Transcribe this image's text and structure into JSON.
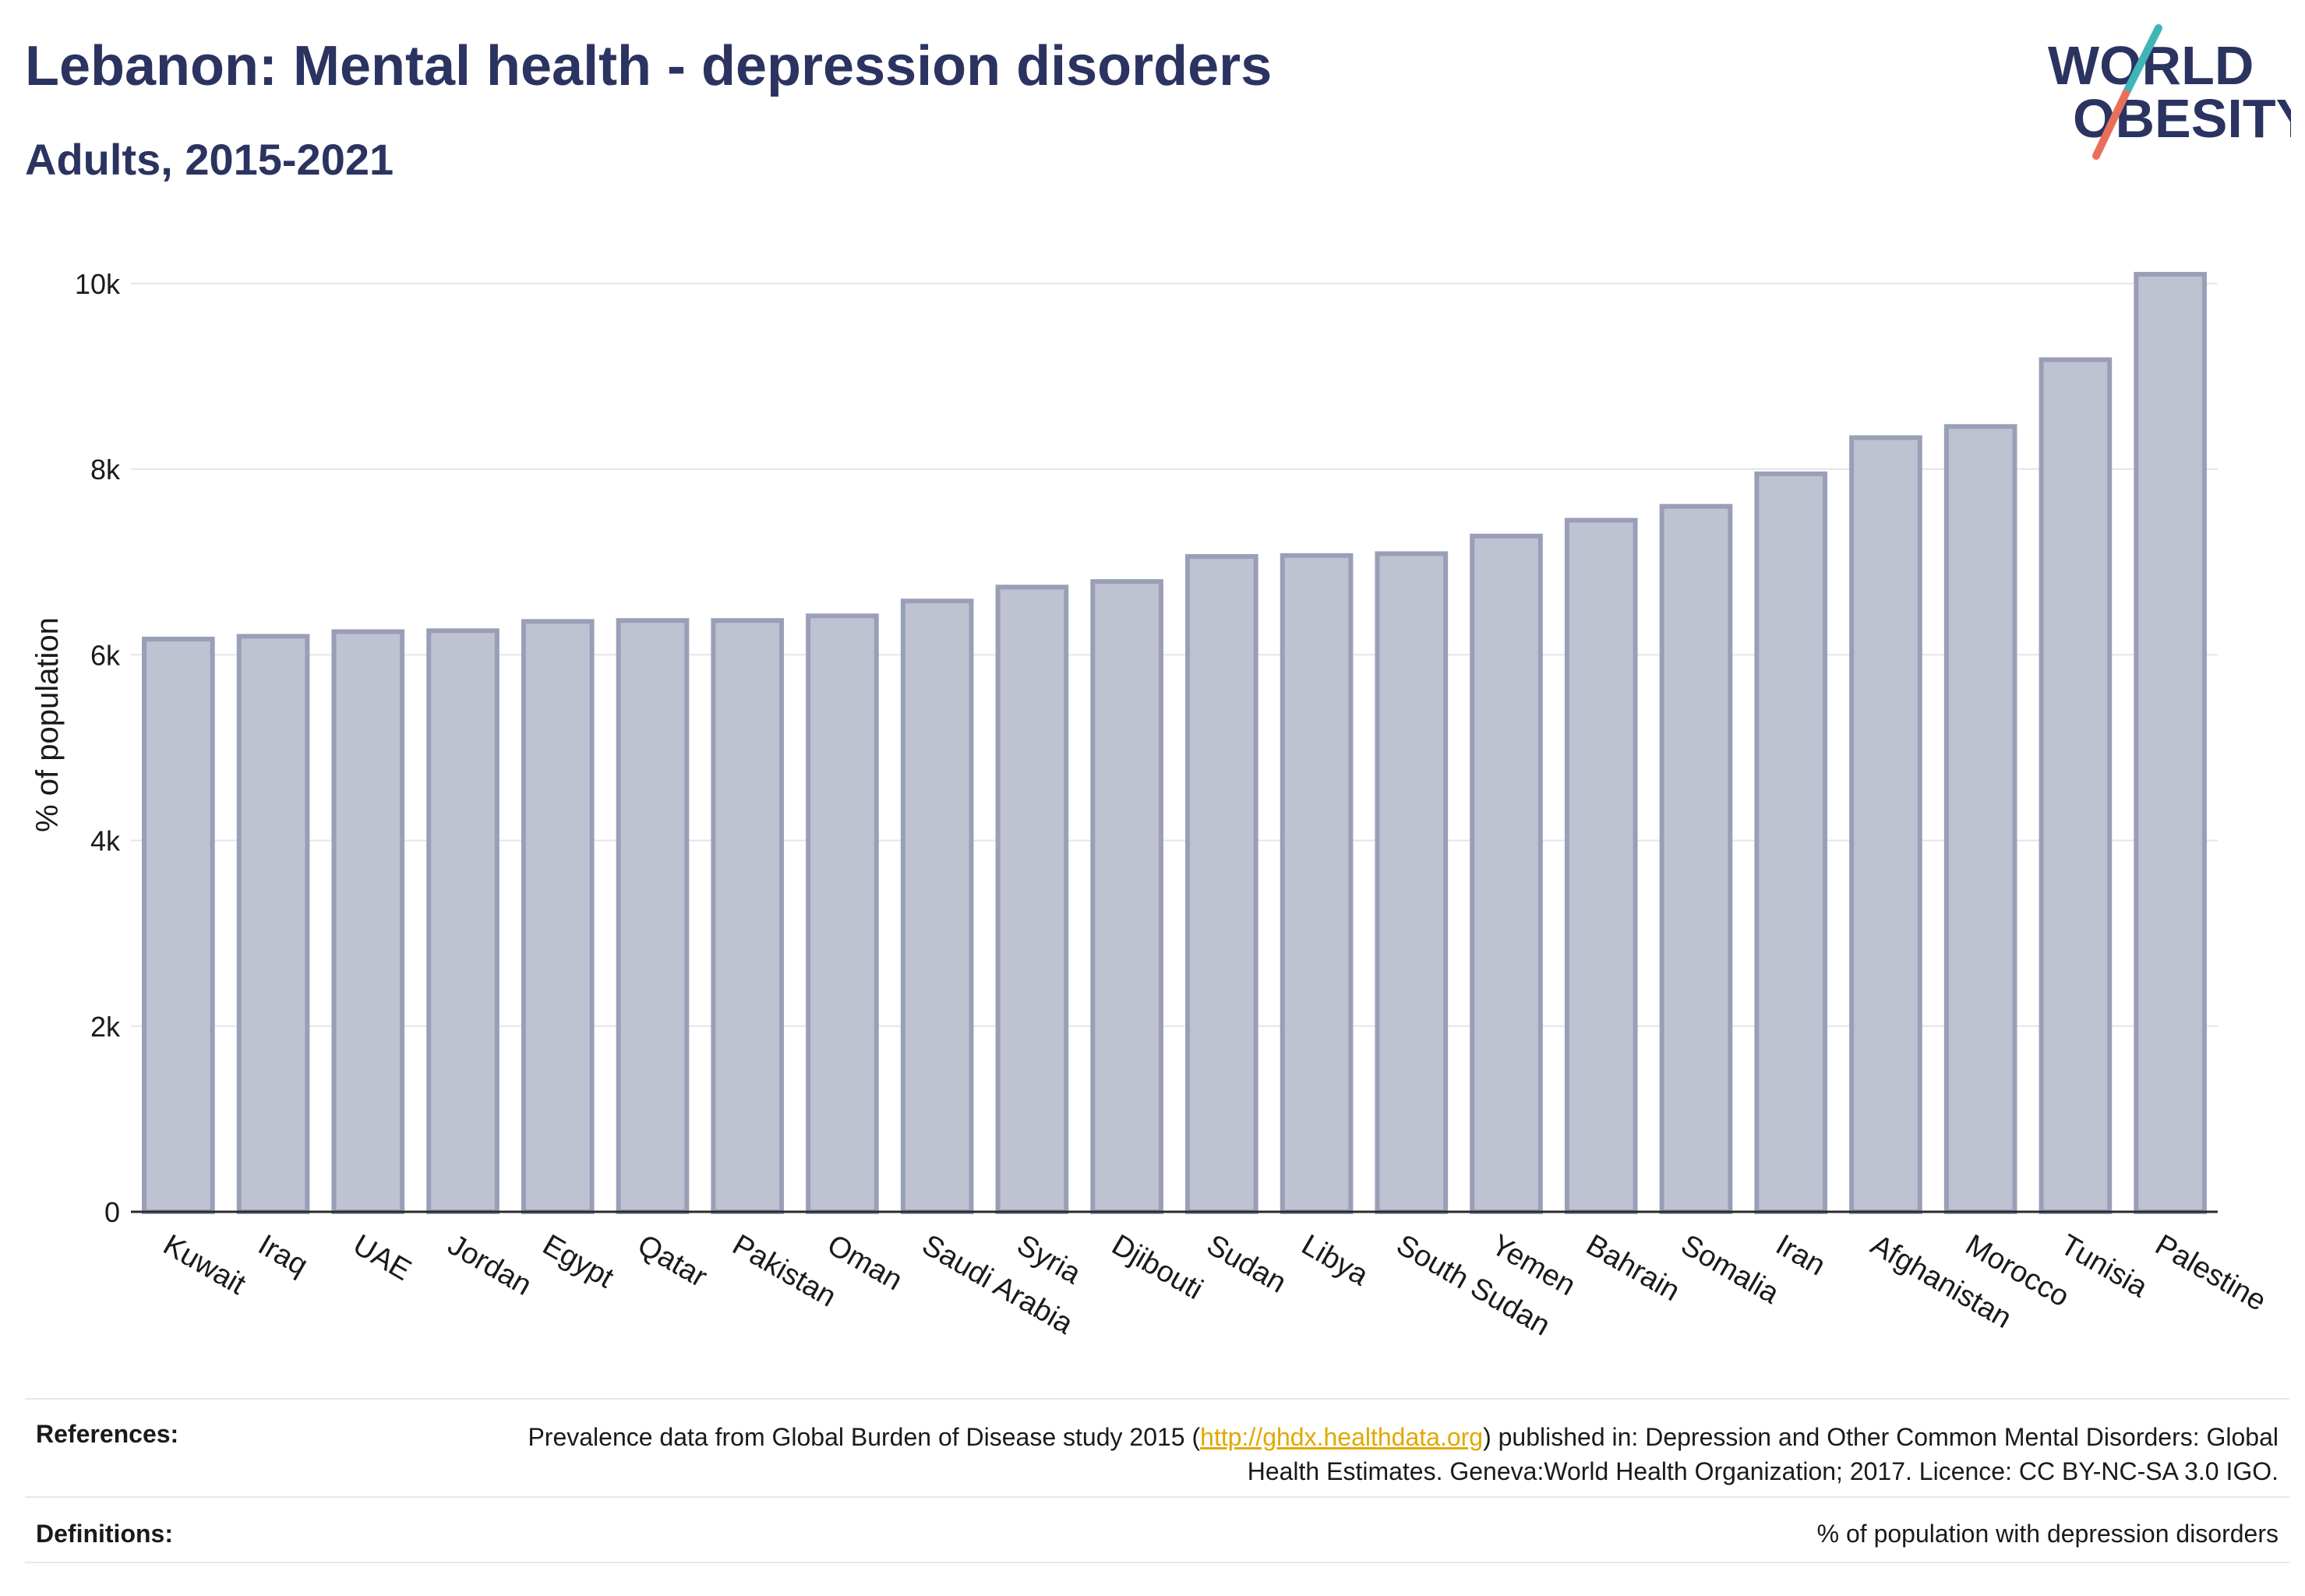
{
  "header": {
    "title": "Lebanon: Mental health - depression disorders",
    "subtitle": "Adults, 2015-2021"
  },
  "logo": {
    "line1": "WORLD",
    "line2": "OBESITY",
    "colors": {
      "text": "#2b3360",
      "slash_top": "#3fb5b8",
      "slash_bottom": "#e8705a"
    }
  },
  "chart_data": {
    "type": "bar",
    "ylabel": "% of population",
    "xlabel": "",
    "ylim": [
      0,
      10200
    ],
    "yticks": [
      0,
      2000,
      4000,
      6000,
      8000,
      10000
    ],
    "ytick_labels": [
      "0",
      "2k",
      "4k",
      "6k",
      "8k",
      "10k"
    ],
    "grid": true,
    "bar_color": "#bfc2d1",
    "bar_edge_color": "#9a9fb8",
    "categories": [
      "Kuwait",
      "Iraq",
      "UAE",
      "Jordan",
      "Egypt",
      "Qatar",
      "Pakistan",
      "Oman",
      "Saudi Arabia",
      "Syria",
      "Djibouti",
      "Sudan",
      "Libya",
      "South Sudan",
      "Yemen",
      "Bahrain",
      "Somalia",
      "Iran",
      "Afghanistan",
      "Morocco",
      "Tunisia",
      "Palestine"
    ],
    "values": [
      6170,
      6200,
      6250,
      6260,
      6360,
      6370,
      6370,
      6420,
      6580,
      6730,
      6790,
      7060,
      7070,
      7090,
      7280,
      7450,
      7600,
      7950,
      8340,
      8460,
      9180,
      10100
    ]
  },
  "footer": {
    "references_label": "References:",
    "references_prefix": "Prevalence data from Global Burden of Disease study 2015 (",
    "references_link": "http://ghdx.healthdata.org",
    "references_suffix": ") published in: Depression and Other Common Mental Disorders: Global Health Estimates. Geneva:World Health Organization; 2017. Licence: CC BY-NC-SA 3.0 IGO.",
    "definitions_label": "Definitions:",
    "definitions_text": "% of population with depression disorders"
  }
}
